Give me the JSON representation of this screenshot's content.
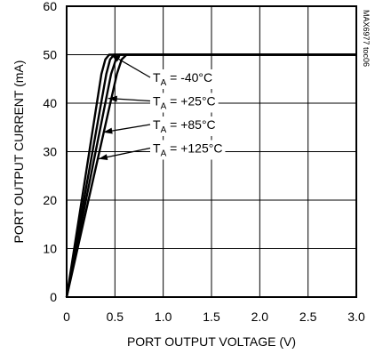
{
  "chart_data": {
    "type": "line",
    "title": "",
    "xlabel": "PORT OUTPUT VOLTAGE (V)",
    "ylabel": "PORT OUTPUT CURRENT (mA)",
    "xlim": [
      0,
      3.0
    ],
    "ylim": [
      0,
      60
    ],
    "x_ticks": [
      "0",
      "0.5",
      "1.0",
      "1.5",
      "2.0",
      "2.5",
      "3.0"
    ],
    "y_ticks": [
      "0",
      "10",
      "20",
      "30",
      "40",
      "50",
      "60"
    ],
    "grid": true,
    "series": [
      {
        "name": "T_A = -40°C",
        "points": [
          [
            0,
            0
          ],
          [
            0.36,
            46
          ],
          [
            0.4,
            49
          ],
          [
            0.44,
            50
          ],
          [
            3.0,
            50
          ]
        ]
      },
      {
        "name": "T_A = +25°C",
        "points": [
          [
            0,
            0
          ],
          [
            0.41,
            46
          ],
          [
            0.45,
            49
          ],
          [
            0.49,
            50
          ],
          [
            3.0,
            50
          ]
        ]
      },
      {
        "name": "T_A = +85°C",
        "points": [
          [
            0,
            0
          ],
          [
            0.46,
            46
          ],
          [
            0.51,
            49
          ],
          [
            0.55,
            50
          ],
          [
            3.0,
            50
          ]
        ]
      },
      {
        "name": "T_A = +125°C",
        "points": [
          [
            0,
            0
          ],
          [
            0.52,
            46
          ],
          [
            0.57,
            49
          ],
          [
            0.62,
            50
          ],
          [
            3.0,
            50
          ]
        ]
      }
    ],
    "annotations": [
      {
        "pre": "T",
        "sub": "A",
        "post": " = -40°C",
        "target": [
          0.46,
          50
        ]
      },
      {
        "pre": "T",
        "sub": "A",
        "post": " = +25°C",
        "target": [
          0.43,
          41
        ]
      },
      {
        "pre": "T",
        "sub": "A",
        "post": " = +85°C",
        "target": [
          0.38,
          34
        ]
      },
      {
        "pre": "T",
        "sub": "A",
        "post": " = +125°C",
        "target": [
          0.33,
          28.5
        ]
      }
    ],
    "figure_code": "MAX6977 toc06"
  }
}
